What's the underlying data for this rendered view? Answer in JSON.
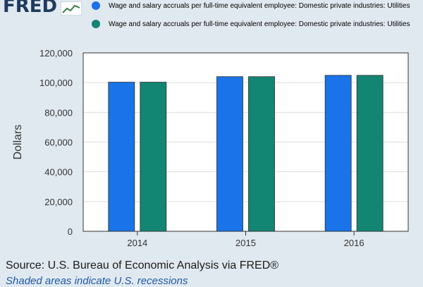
{
  "logo_text": "FRED",
  "chart_data": {
    "type": "bar",
    "categories": [
      "2014",
      "2015",
      "2016"
    ],
    "series": [
      {
        "name": "Wage and salary accruals per full-time equivalent employee: Domestic private industries: Utilities",
        "color": "#1a73e8",
        "values": [
          100300,
          104000,
          104900
        ]
      },
      {
        "name": "Wage and salary accruals per full-time equivalent employee: Domestic private industries: Utilities",
        "color": "#128573",
        "values": [
          100300,
          104000,
          104900
        ]
      }
    ],
    "ylabel": "Dollars",
    "ylim": [
      0,
      120000
    ],
    "yticks": [
      "0",
      "20,000",
      "40,000",
      "60,000",
      "80,000",
      "100,000",
      "120,000"
    ],
    "grid": true,
    "legend_position": "top"
  },
  "footer": {
    "source": "Source: U.S. Bureau of Economic Analysis via FRED®",
    "note": "Shaded areas indicate U.S. recessions"
  }
}
